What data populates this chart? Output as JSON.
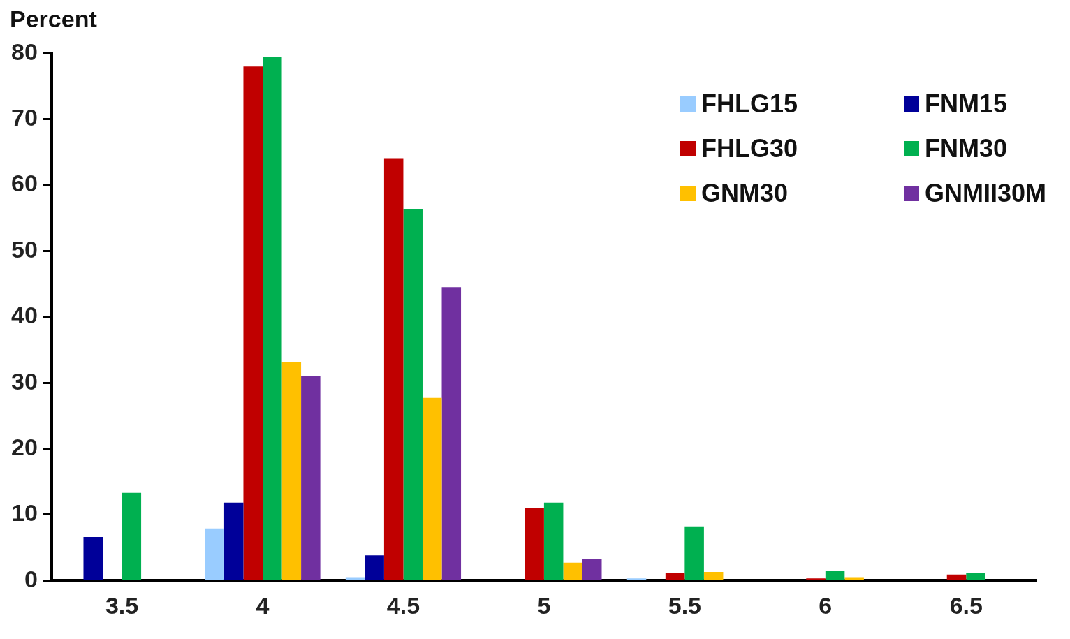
{
  "chart_data": {
    "type": "bar",
    "ylabel": "Percent",
    "categories": [
      "3.5",
      "4",
      "4.5",
      "5",
      "5.5",
      "6",
      "6.5"
    ],
    "series": [
      {
        "name": "FHLG15",
        "color": "#99ccff",
        "values": [
          0,
          7.9,
          0.5,
          0,
          0.3,
          0,
          0
        ]
      },
      {
        "name": "FNM15",
        "color": "#000099",
        "values": [
          6.6,
          11.8,
          3.8,
          0,
          0,
          0,
          0
        ]
      },
      {
        "name": "FHLG30",
        "color": "#c00000",
        "values": [
          0,
          78.0,
          64.1,
          11.0,
          1.1,
          0.3,
          0.9
        ]
      },
      {
        "name": "FNM30",
        "color": "#00b050",
        "values": [
          13.3,
          79.5,
          56.4,
          11.8,
          8.2,
          1.5,
          1.1
        ]
      },
      {
        "name": "GNM30",
        "color": "#ffc000",
        "values": [
          0,
          33.2,
          27.7,
          2.7,
          1.3,
          0.5,
          0
        ]
      },
      {
        "name": "GNMII30M",
        "color": "#7030a0",
        "values": [
          0,
          31.0,
          44.5,
          3.3,
          0,
          0,
          0
        ]
      }
    ],
    "ylim": [
      0,
      80
    ],
    "yticks": [
      0,
      10,
      20,
      30,
      40,
      50,
      60,
      70,
      80
    ],
    "grid": false,
    "legend": "top right"
  }
}
